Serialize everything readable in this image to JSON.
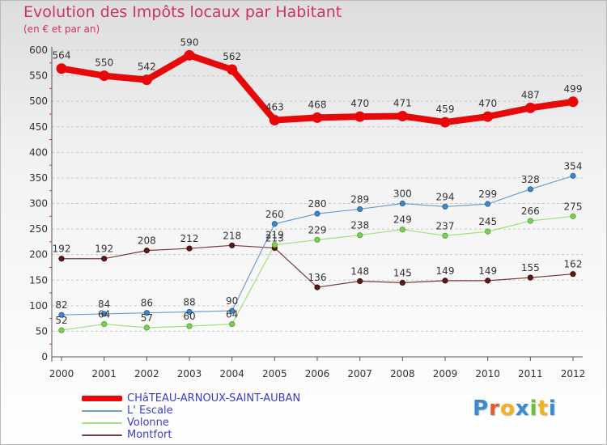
{
  "title": "Evolution des Impôts locaux par Habitant",
  "subtitle": "(en € et par an)",
  "brand": {
    "text": "Proxiti",
    "letter_colors": [
      "#3a8ad0",
      "#e8592a",
      "#f4b21b",
      "#3a8ad0",
      "#6cbf3a",
      "#f4b21b",
      "#3a8ad0"
    ]
  },
  "colors": {
    "grid": "#c8c8c8",
    "axis": "#555555",
    "label": "#333333",
    "tick_red": "#e03030"
  },
  "chart_data": {
    "type": "line",
    "title": "Evolution des Impôts locaux par Habitant",
    "ylabel": "(en € et par an)",
    "xlabel": "",
    "categories": [
      "2000",
      "2001",
      "2002",
      "2003",
      "2004",
      "2005",
      "2006",
      "2007",
      "2008",
      "2009",
      "2010",
      "2011",
      "2012"
    ],
    "ylim": [
      0,
      600
    ],
    "yticks": [
      0,
      50,
      100,
      150,
      200,
      250,
      300,
      350,
      400,
      450,
      500,
      550,
      600
    ],
    "grid": "horizontal dashed",
    "legend_position": "bottom-left",
    "series": [
      {
        "name": "CHâTEAU-ARNOUX-SAINT-AUBAN",
        "color": "#e8080a",
        "marker_fill": "#e8080a",
        "marker_stroke": "#b00000",
        "width": 8,
        "values": [
          564,
          550,
          542,
          590,
          562,
          463,
          468,
          470,
          471,
          459,
          470,
          487,
          499
        ]
      },
      {
        "name": "L' Escale",
        "color": "#6a9fd0",
        "marker_fill": "#3f86c8",
        "marker_stroke": "#2a5f90",
        "width": 1.2,
        "values": [
          82,
          84,
          86,
          88,
          90,
          260,
          280,
          289,
          300,
          294,
          299,
          328,
          354
        ]
      },
      {
        "name": "Volonne",
        "color": "#a2e07a",
        "marker_fill": "#7ed054",
        "marker_stroke": "#4f9a2f",
        "width": 1.2,
        "values": [
          52,
          64,
          57,
          60,
          64,
          219,
          229,
          238,
          249,
          237,
          245,
          266,
          275
        ]
      },
      {
        "name": "Montfort",
        "color": "#7a3a3a",
        "marker_fill": "#5a1818",
        "marker_stroke": "#3a0a0a",
        "width": 1.2,
        "values": [
          192,
          192,
          208,
          212,
          218,
          213,
          136,
          148,
          145,
          149,
          149,
          155,
          162
        ]
      }
    ]
  }
}
